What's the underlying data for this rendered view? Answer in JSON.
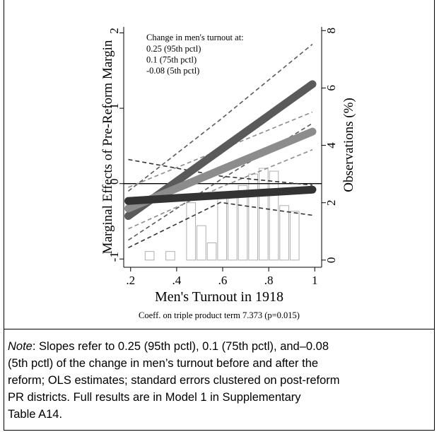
{
  "chart_data": {
    "type": "line",
    "y_label": "Marginal Effects of Pre-Reform Margin",
    "y2_label": "Observations (%)",
    "x_label": "Men's Turnout in 1918",
    "caption": "Coeff. on triple product term 7.373 (p=0.015)",
    "legend_title": "Change in men's turnout at:",
    "x": [
      0.19,
      0.59,
      0.99
    ],
    "series": [
      {
        "name": "0.25 (95th pctl)",
        "color": "#5a5a5a",
        "values": [
          -0.43,
          0.445,
          1.32
        ]
      },
      {
        "name": "0.1 (75th pctl)",
        "color": "#8c8c8c",
        "values": [
          -0.33,
          0.18,
          0.69
        ]
      },
      {
        "name": "-0.08 (5th pctl)",
        "color": "#333333",
        "values": [
          -0.23,
          -0.155,
          -0.08
        ]
      }
    ],
    "bands": [
      {
        "color": "#5a5a5a",
        "lower": [
          -0.75,
          0.05,
          0.8
        ],
        "upper": [
          -0.1,
          0.85,
          1.85
        ]
      },
      {
        "color": "#8c8c8c",
        "lower": [
          -0.6,
          -0.05,
          0.45
        ],
        "upper": [
          -0.05,
          0.45,
          0.95
        ]
      },
      {
        "color": "#333333",
        "lower": [
          -0.85,
          -0.25,
          -0.42
        ],
        "upper": [
          0.32,
          0.1,
          -0.02
        ]
      }
    ],
    "histogram": {
      "axis": "y2",
      "color": "#b0b0b0",
      "bins": [
        0.26,
        0.305,
        0.35,
        0.395,
        0.44,
        0.485,
        0.53,
        0.575,
        0.62,
        0.665,
        0.71,
        0.755,
        0.8,
        0.845,
        0.89,
        0.935
      ],
      "values": [
        0.3,
        0,
        0.3,
        0,
        2.0,
        1.2,
        0.6,
        2.3,
        2.3,
        2.6,
        3.0,
        3.2,
        3.1,
        1.9,
        1.7
      ]
    },
    "xlim": [
      0.17,
      1.03
    ],
    "xticks": [
      {
        "value": 0.2,
        "label": ".2"
      },
      {
        "value": 0.4,
        "label": ".4"
      },
      {
        "value": 0.6,
        "label": ".6"
      },
      {
        "value": 0.8,
        "label": ".8"
      },
      1
    ],
    "ylim": [
      -1.11,
      2.08
    ],
    "yticks": [
      -1,
      0,
      1,
      2
    ],
    "y2lim": [
      -0.25,
      8.13
    ],
    "y2ticks": [
      0,
      2,
      4,
      6,
      8
    ],
    "zero_line": 0
  },
  "note": {
    "label": "Note",
    "lines": [
      ": Slopes refer to 0.25 (95th pctl), 0.1 (75th pctl), and–0.08",
      "(5th pctl) of the change in men’s turnout before and after the",
      "reform; OLS estimates; standard errors clustered on post-reform",
      "PR districts. Full results are in Model 1 in Supplementary",
      "Table A14."
    ]
  }
}
